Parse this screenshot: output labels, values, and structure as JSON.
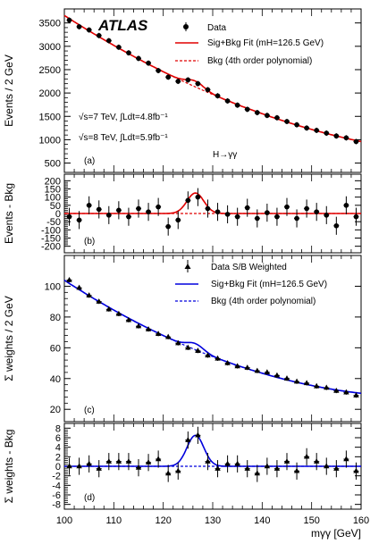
{
  "chart_data": [
    {
      "id": "a",
      "type": "scatter",
      "panel_label": "(a)",
      "ylabel": "Events / 2 GeV",
      "ylim": [
        300,
        3800
      ],
      "yticks": [
        500,
        1000,
        1500,
        2000,
        2500,
        3000,
        3500
      ],
      "experiment_label": "ATLAS",
      "annotations": [
        "√s=7 TeV, ∫Ldt=4.8fb⁻¹",
        "√s=8 TeV, ∫Ldt=5.9fb⁻¹",
        "H→γγ"
      ],
      "legend": [
        "Data",
        "Sig+Bkg Fit (mH=126.5 GeV)",
        "Bkg (4th order polynomial)"
      ],
      "series": [
        {
          "name": "Data",
          "style": "point",
          "color": "#000000",
          "x": [
            101,
            103,
            105,
            107,
            109,
            111,
            113,
            115,
            117,
            119,
            121,
            123,
            125,
            127,
            129,
            131,
            133,
            135,
            137,
            139,
            141,
            143,
            145,
            147,
            149,
            151,
            153,
            155,
            157,
            159
          ],
          "y": [
            3560,
            3420,
            3350,
            3230,
            3120,
            2980,
            2860,
            2740,
            2640,
            2480,
            2340,
            2250,
            2280,
            2200,
            2070,
            1940,
            1830,
            1740,
            1650,
            1580,
            1520,
            1470,
            1390,
            1320,
            1250,
            1200,
            1140,
            1080,
            1040,
            960
          ],
          "err": 58
        },
        {
          "name": "Sig+Bkg Fit",
          "style": "fit_solid",
          "color": "#e00000"
        },
        {
          "name": "Bkg (4th order polynomial)",
          "style": "fit_dashed",
          "color": "#e00000"
        }
      ]
    },
    {
      "id": "b",
      "type": "scatter",
      "panel_label": "(b)",
      "ylabel": "Events - Bkg",
      "ylim": [
        -240,
        240
      ],
      "yticks": [
        -200,
        -150,
        -100,
        -50,
        0,
        50,
        100,
        150,
        200
      ],
      "series": [
        {
          "name": "Data",
          "style": "point",
          "color": "#000000",
          "x": [
            101,
            103,
            105,
            107,
            109,
            111,
            113,
            115,
            117,
            119,
            121,
            123,
            125,
            127,
            129,
            131,
            133,
            135,
            137,
            139,
            141,
            143,
            145,
            147,
            149,
            151,
            153,
            155,
            157,
            159
          ],
          "y": [
            -20,
            -40,
            50,
            25,
            -10,
            20,
            -20,
            30,
            10,
            40,
            -80,
            -40,
            80,
            100,
            30,
            10,
            -5,
            -20,
            35,
            -30,
            5,
            -20,
            40,
            -30,
            30,
            10,
            -10,
            -75,
            50,
            -20
          ],
          "err": 55
        },
        {
          "name": "Sig+Bkg Fit",
          "style": "fit_solid",
          "color": "#e00000"
        },
        {
          "name": "Bkg (4th order polynomial)",
          "style": "fit_dashed",
          "color": "#e00000"
        }
      ]
    },
    {
      "id": "c",
      "type": "scatter",
      "panel_label": "(c)",
      "ylabel": "Σ weights / 2 GeV",
      "ylim": [
        12,
        120
      ],
      "yticks": [
        20,
        40,
        60,
        80,
        100
      ],
      "legend": [
        "Data S/B Weighted",
        "Sig+Bkg Fit (mH=126.5 GeV)",
        "Bkg (4th order polynomial)"
      ],
      "series": [
        {
          "name": "Data S/B Weighted",
          "style": "triangle",
          "color": "#000000",
          "x": [
            101,
            103,
            105,
            107,
            109,
            111,
            113,
            115,
            117,
            119,
            121,
            123,
            125,
            127,
            129,
            131,
            133,
            135,
            137,
            139,
            141,
            143,
            145,
            147,
            149,
            151,
            153,
            155,
            157,
            159
          ],
          "y": [
            104,
            99,
            94,
            90,
            85,
            82,
            78,
            74,
            72,
            69,
            67,
            63,
            60,
            58,
            55,
            53,
            50,
            48,
            47,
            45,
            44,
            42,
            40,
            38,
            37,
            35,
            34,
            32,
            31,
            29
          ],
          "err": 1.5
        },
        {
          "name": "Sig+Bkg Fit",
          "style": "fit_solid",
          "color": "#0000dd"
        },
        {
          "name": "Bkg (4th order polynomial)",
          "style": "fit_dashed",
          "color": "#0000dd"
        }
      ]
    },
    {
      "id": "d",
      "type": "scatter",
      "panel_label": "(d)",
      "ylabel": "Σ weights - Bkg",
      "xlabel": "mγγ [GeV]",
      "ylim": [
        -9,
        9
      ],
      "yticks": [
        -8,
        -6,
        -4,
        -2,
        0,
        2,
        4,
        6,
        8
      ],
      "xlim": [
        100,
        160
      ],
      "xticks": [
        100,
        110,
        120,
        130,
        140,
        150,
        160
      ],
      "series": [
        {
          "name": "Data S/B Weighted",
          "style": "triangle",
          "color": "#000000",
          "x": [
            101,
            103,
            105,
            107,
            109,
            111,
            113,
            115,
            117,
            119,
            121,
            123,
            125,
            127,
            129,
            131,
            133,
            135,
            137,
            139,
            141,
            143,
            145,
            147,
            149,
            151,
            153,
            155,
            157,
            159
          ],
          "y": [
            0,
            0,
            0.5,
            -0.5,
            1,
            1,
            1,
            -0.3,
            0.8,
            1.5,
            -1.5,
            -1,
            5.5,
            6.5,
            1,
            -0.5,
            0.5,
            0.5,
            -0.5,
            -1.5,
            0,
            -0.5,
            1,
            -1,
            2,
            1,
            0,
            -0.5,
            1.5,
            -1
          ],
          "err": 1.8
        },
        {
          "name": "Sig+Bkg Fit",
          "style": "fit_solid",
          "color": "#0000dd"
        },
        {
          "name": "Bkg (4th order polynomial)",
          "style": "fit_dashed",
          "color": "#0000dd"
        }
      ]
    }
  ]
}
